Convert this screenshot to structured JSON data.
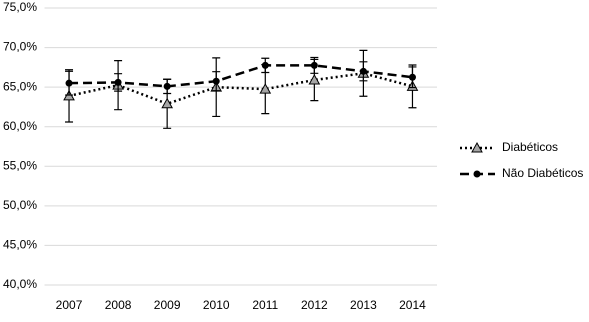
{
  "chart_data": {
    "type": "line",
    "categories": [
      "2007",
      "2008",
      "2009",
      "2010",
      "2011",
      "2012",
      "2013",
      "2014"
    ],
    "series": [
      {
        "name": "Diabéticos",
        "color": "#000000",
        "dash": "dotted",
        "marker": "triangle",
        "values": [
          63.9,
          65.25,
          62.9,
          65.0,
          64.75,
          65.9,
          66.75,
          65.1
        ],
        "errors": [
          3.3,
          3.1,
          3.1,
          3.7,
          3.1,
          2.6,
          2.9,
          2.7
        ]
      },
      {
        "name": "Não Diabéticos",
        "color": "#000000",
        "dash": "dashed",
        "marker": "circle",
        "values": [
          65.5,
          65.6,
          65.1,
          65.75,
          67.75,
          67.75,
          67.0,
          66.25
        ],
        "errors": [
          1.5,
          1.1,
          0.9,
          1.2,
          0.9,
          1.0,
          1.2,
          1.3
        ]
      }
    ],
    "ylim": [
      40,
      75
    ],
    "yticks": [
      {
        "value": 40,
        "label": "40,0%"
      },
      {
        "value": 45,
        "label": "45,0%"
      },
      {
        "value": 50,
        "label": "50,0%"
      },
      {
        "value": 55,
        "label": "55,0%"
      },
      {
        "value": 60,
        "label": "60,0%"
      },
      {
        "value": 65,
        "label": "65,0%"
      },
      {
        "value": 70,
        "label": "70,0%"
      },
      {
        "value": 75,
        "label": "75,0%"
      }
    ],
    "grid": true,
    "legend": "right"
  }
}
